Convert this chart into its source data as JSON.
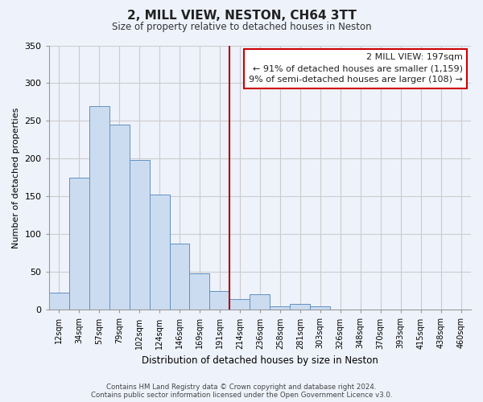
{
  "title": "2, MILL VIEW, NESTON, CH64 3TT",
  "subtitle": "Size of property relative to detached houses in Neston",
  "xlabel": "Distribution of detached houses by size in Neston",
  "ylabel": "Number of detached properties",
  "bar_labels": [
    "12sqm",
    "34sqm",
    "57sqm",
    "79sqm",
    "102sqm",
    "124sqm",
    "146sqm",
    "169sqm",
    "191sqm",
    "214sqm",
    "236sqm",
    "258sqm",
    "281sqm",
    "303sqm",
    "326sqm",
    "348sqm",
    "370sqm",
    "393sqm",
    "415sqm",
    "438sqm",
    "460sqm"
  ],
  "bar_values": [
    23,
    175,
    270,
    245,
    198,
    153,
    88,
    48,
    25,
    14,
    21,
    5,
    8,
    5,
    0,
    0,
    0,
    0,
    0,
    0,
    0
  ],
  "bar_color": "#ccdcf0",
  "bar_edge_color": "#6090c0",
  "vline_x_index": 9.0,
  "vline_color": "#aa0000",
  "ylim": [
    0,
    350
  ],
  "yticks": [
    0,
    50,
    100,
    150,
    200,
    250,
    300,
    350
  ],
  "annotation_title": "2 MILL VIEW: 197sqm",
  "annotation_line1": "← 91% of detached houses are smaller (1,159)",
  "annotation_line2": "9% of semi-detached houses are larger (108) →",
  "annotation_box_color": "#ffffff",
  "annotation_box_edge": "#cc0000",
  "footnote1": "Contains HM Land Registry data © Crown copyright and database right 2024.",
  "footnote2": "Contains public sector information licensed under the Open Government Licence v3.0.",
  "background_color": "#eef2fb",
  "grid_color": "#cccccc"
}
